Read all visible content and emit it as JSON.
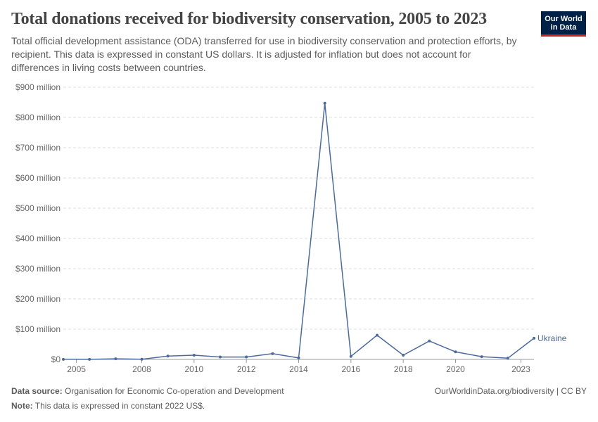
{
  "header": {
    "title": "Total donations received for biodiversity conservation, 2005 to 2023",
    "subtitle": "Total official development assistance (ODA) transferred for use in biodiversity conservation and protection efforts, by recipient. This data is expressed in constant US dollars. It is adjusted for inflation but does not account for differences in living costs between countries."
  },
  "logo": {
    "line1": "Our World",
    "line2": "in Data",
    "bg_color": "#002147",
    "accent_color": "#ce261e"
  },
  "footer": {
    "source_label": "Data source:",
    "source_text": "Organisation for Economic Co-operation and Development",
    "note_label": "Note:",
    "note_text": "This data is expressed in constant 2022 US$.",
    "credit": "OurWorldinData.org/biodiversity | CC BY"
  },
  "chart_data": {
    "type": "line",
    "title": "Total donations received for biodiversity conservation, 2005 to 2023",
    "xlabel": "",
    "ylabel": "",
    "x": [
      2004,
      2005,
      2006,
      2007,
      2008,
      2009,
      2010,
      2011,
      2012,
      2013,
      2014,
      2015,
      2016,
      2017,
      2018,
      2019,
      2020,
      2021,
      2022,
      2023
    ],
    "series": [
      {
        "name": "Ukraine",
        "color": "#4c6a9c",
        "values": [
          0.4,
          0.2,
          2,
          0.5,
          11,
          14,
          8,
          8,
          19,
          5,
          847,
          10,
          80,
          14,
          61,
          25,
          9,
          4,
          70,
          null
        ]
      }
    ],
    "xlim": [
      2004,
      2022
    ],
    "ylim": [
      0,
      900
    ],
    "x_ticks": [
      {
        "value": 2004.5,
        "label": "2005"
      },
      {
        "value": 2007,
        "label": "2008"
      },
      {
        "value": 2009,
        "label": "2010"
      },
      {
        "value": 2011,
        "label": "2012"
      },
      {
        "value": 2013,
        "label": "2014"
      },
      {
        "value": 2015,
        "label": "2016"
      },
      {
        "value": 2017,
        "label": "2018"
      },
      {
        "value": 2019,
        "label": "2020"
      },
      {
        "value": 2021.5,
        "label": "2023"
      }
    ],
    "y_ticks": [
      {
        "value": 0,
        "label": "$0"
      },
      {
        "value": 100,
        "label": "$100 million"
      },
      {
        "value": 200,
        "label": "$200 million"
      },
      {
        "value": 300,
        "label": "$300 million"
      },
      {
        "value": 400,
        "label": "$400 million"
      },
      {
        "value": 500,
        "label": "$500 million"
      },
      {
        "value": 600,
        "label": "$600 million"
      },
      {
        "value": 700,
        "label": "$700 million"
      },
      {
        "value": 800,
        "label": "$800 million"
      },
      {
        "value": 900,
        "label": "$900 million"
      }
    ],
    "grid": true,
    "legend": "end-of-line label"
  }
}
